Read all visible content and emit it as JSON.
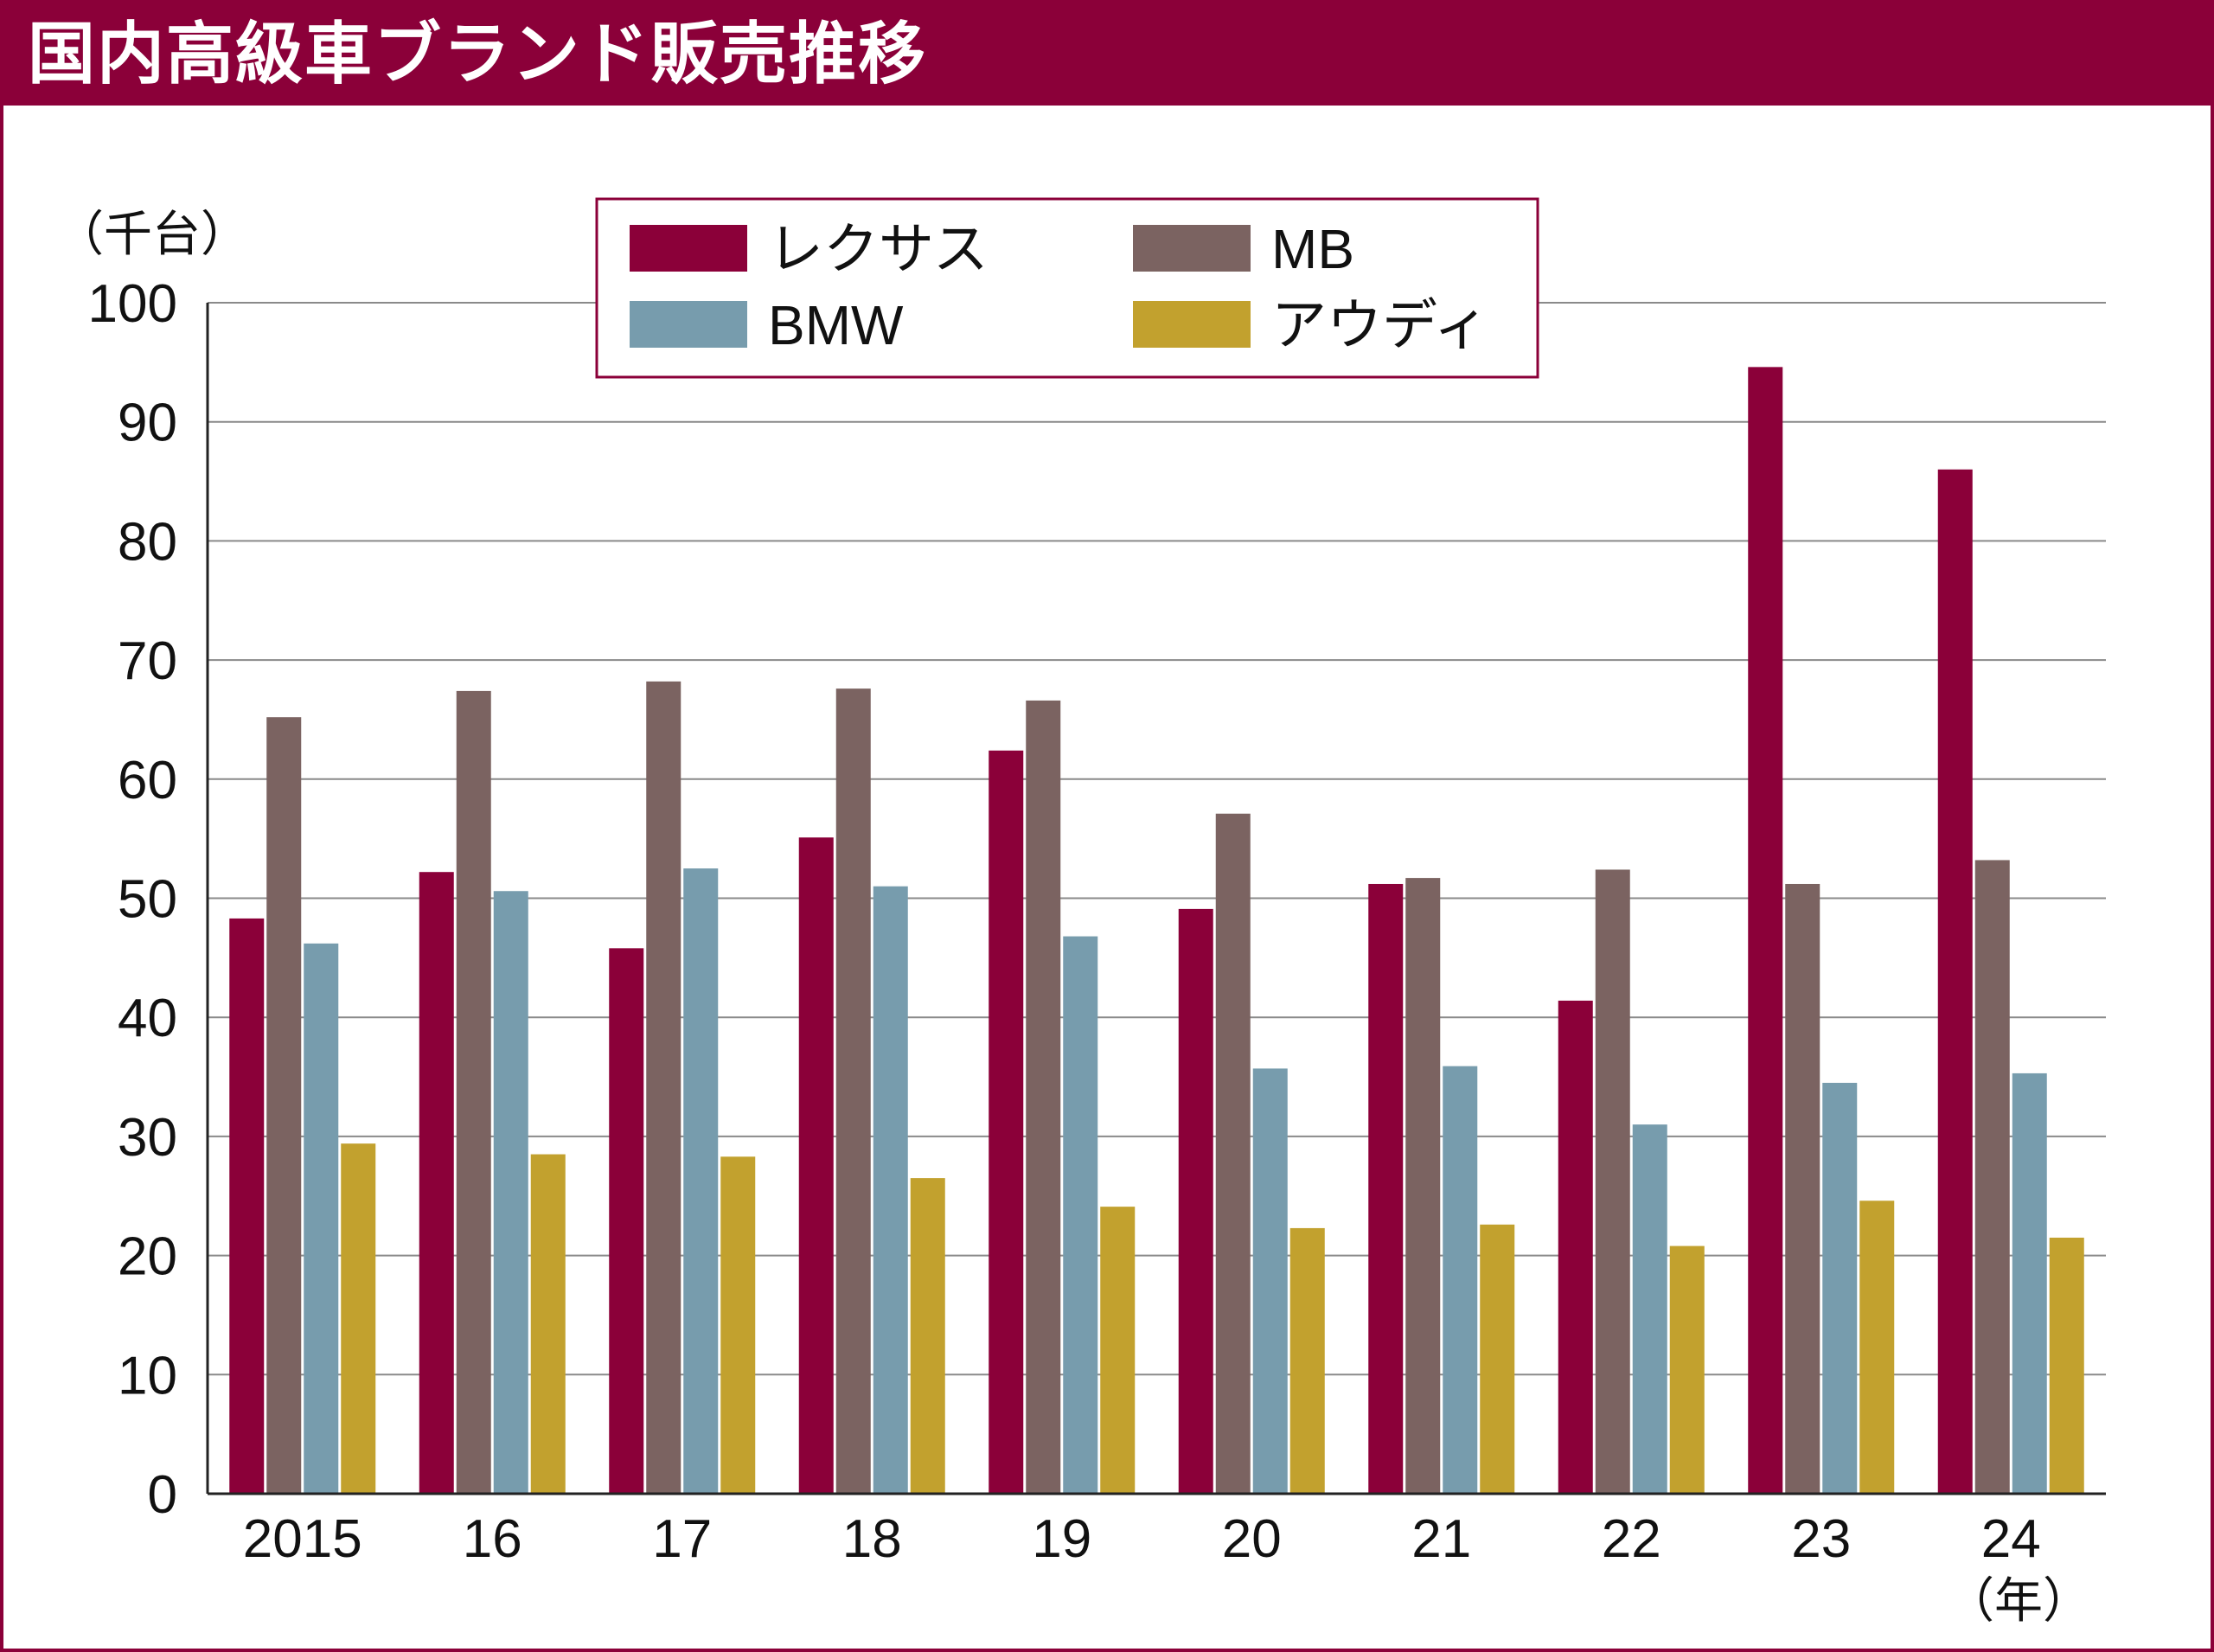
{
  "title": "国内高級車ブランド販売推移",
  "colors": {
    "brand": "#8b0039",
    "grid": "#8a8a8a",
    "axis": "#222222"
  },
  "chart_data": {
    "type": "bar",
    "y_unit": "（千台）",
    "x_unit": "（年）",
    "ylim": [
      0,
      100
    ],
    "yticks": [
      0,
      10,
      20,
      30,
      40,
      50,
      60,
      70,
      80,
      90,
      100
    ],
    "grid": true,
    "legend_position": "top-center",
    "categories": [
      "2015",
      "16",
      "17",
      "18",
      "19",
      "20",
      "21",
      "22",
      "23",
      "24"
    ],
    "series": [
      {
        "name": "レクサス",
        "color": "#8b0039",
        "values": [
          48.3,
          52.2,
          45.8,
          55.1,
          62.4,
          49.1,
          51.2,
          41.4,
          94.6,
          86.0
        ]
      },
      {
        "name": "MB",
        "color": "#7b6361",
        "values": [
          65.2,
          67.4,
          68.2,
          67.6,
          66.6,
          57.1,
          51.7,
          52.4,
          51.2,
          53.2
        ]
      },
      {
        "name": "BMW",
        "color": "#779cad",
        "values": [
          46.2,
          50.6,
          52.5,
          51.0,
          46.8,
          35.7,
          35.9,
          31.0,
          34.5,
          35.3
        ]
      },
      {
        "name": "アウディ",
        "color": "#c2a12e",
        "values": [
          29.4,
          28.5,
          28.3,
          26.5,
          24.1,
          22.3,
          22.6,
          20.8,
          24.6,
          21.5
        ]
      }
    ],
    "legend": [
      {
        "label": "レクサス",
        "color": "#8b0039"
      },
      {
        "label": "MB",
        "color": "#7b6361"
      },
      {
        "label": "BMW",
        "color": "#779cad"
      },
      {
        "label": "アウディ",
        "color": "#c2a12e"
      }
    ]
  }
}
